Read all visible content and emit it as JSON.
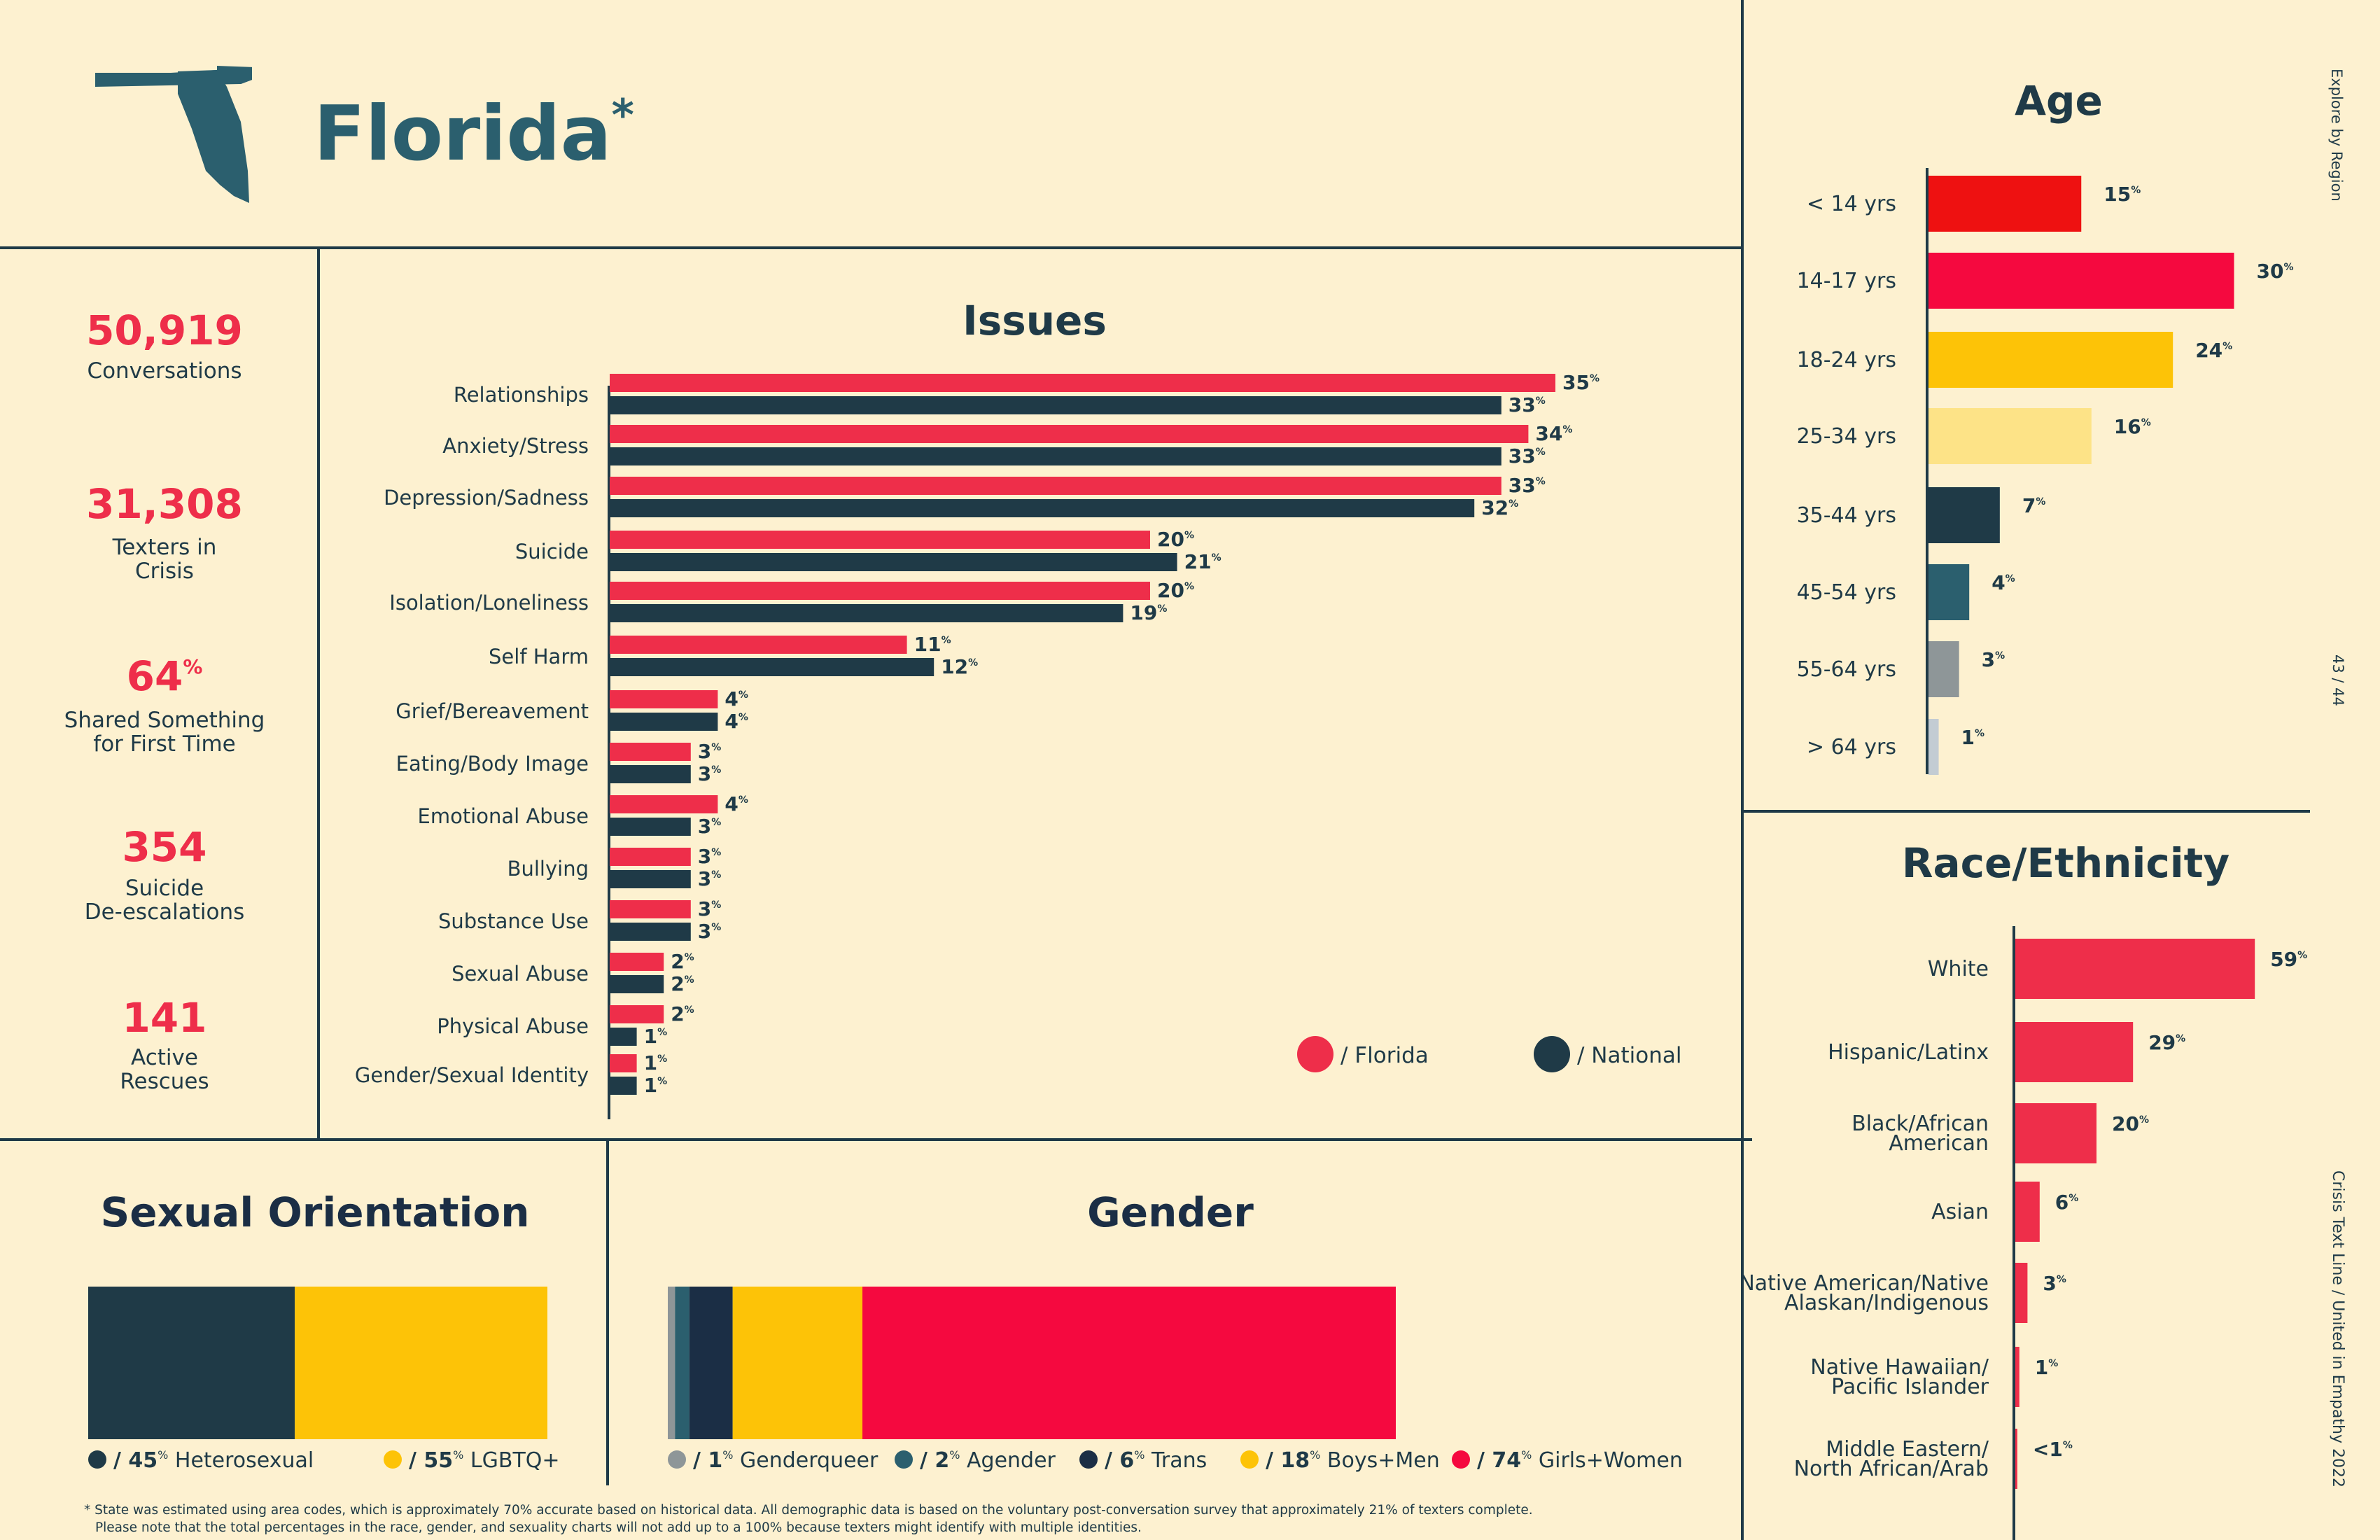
{
  "header": {
    "state": "Florida",
    "asterisk": "*"
  },
  "stats": [
    {
      "value": "50,919",
      "label": [
        "Conversations"
      ]
    },
    {
      "value": "31,308",
      "label": [
        "Texters in",
        "Crisis"
      ]
    },
    {
      "value": "64",
      "unit": "%",
      "label": [
        "Shared Something",
        "for First Time"
      ]
    },
    {
      "value": "354",
      "label": [
        "Suicide",
        "De-escalations"
      ]
    },
    {
      "value": "141",
      "label": [
        "Active",
        "Rescues"
      ]
    }
  ],
  "side_text": {
    "top": "Explore by Region",
    "page": "43 / 44",
    "bottom": "Crisis Text Line  /  United in Empathy 2022"
  },
  "footnote": [
    "* State was estimated using area codes, which is approximately 70% accurate based on historical data. All demographic data is based on the voluntary post-conversation survey that approximately 21% of texters complete.",
    "Please note that the total percentages in the race, gender, and sexuality charts will not add up to a 100% because texters might identify with multiple identities."
  ],
  "colors": {
    "red": "#ee2e4a",
    "dark": "#1f3a47",
    "navy": "#1b2e45",
    "teal": "#2b5f6e",
    "yellow": "#fdc307",
    "paleyellow": "#fde387",
    "gray": "#8e9698",
    "lightgray": "#c3ccd3",
    "brightred": "#ee1111",
    "hotred": "#f5093f"
  },
  "chart_data": [
    {
      "id": "issues",
      "type": "bar",
      "orientation": "horizontal",
      "title": "Issues",
      "categories": [
        "Relationships",
        "Anxiety/Stress",
        "Depression/Sadness",
        "Suicide",
        "Isolation/Loneliness",
        "Self Harm",
        "Grief/Bereavement",
        "Eating/Body Image",
        "Emotional Abuse",
        "Bullying",
        "Substance Use",
        "Sexual Abuse",
        "Physical Abuse",
        "Gender/Sexual Identity"
      ],
      "series": [
        {
          "name": "/ Florida",
          "color": "#ee2e4a",
          "values": [
            35,
            34,
            33,
            20,
            20,
            11,
            4,
            3,
            4,
            3,
            3,
            2,
            2,
            1
          ]
        },
        {
          "name": "/ National",
          "color": "#1f3a47",
          "values": [
            33,
            33,
            32,
            21,
            19,
            12,
            4,
            3,
            3,
            3,
            3,
            2,
            1,
            1
          ]
        }
      ],
      "unit": "%",
      "legend": "bottom-right"
    },
    {
      "id": "age",
      "type": "bar",
      "orientation": "horizontal",
      "title": "Age",
      "categories": [
        "< 14 yrs",
        "14-17 yrs",
        "18-24 yrs",
        "25-34 yrs",
        "35-44 yrs",
        "45-54 yrs",
        "55-64 yrs",
        "> 64 yrs"
      ],
      "values": [
        15,
        30,
        24,
        16,
        7,
        4,
        3,
        1
      ],
      "labels": [
        "15",
        "30",
        "24",
        "16",
        "7",
        "4",
        "3",
        "1"
      ],
      "colors": [
        "#ee1111",
        "#f5093f",
        "#fdc307",
        "#fde387",
        "#1f3a47",
        "#2b5f6e",
        "#8e9698",
        "#c3ccd3"
      ],
      "unit": "%"
    },
    {
      "id": "race",
      "type": "bar",
      "orientation": "horizontal",
      "title": "Race/Ethnicity",
      "categories": [
        [
          "White"
        ],
        [
          "Hispanic/Latinx"
        ],
        [
          "Black/African",
          "American"
        ],
        [
          "Asian"
        ],
        [
          "Native American/Native",
          "Alaskan/Indigenous"
        ],
        [
          "Native Hawaiian/",
          "Pacific Islander"
        ],
        [
          "Middle Eastern/",
          "North African/Arab"
        ]
      ],
      "values": [
        59,
        29,
        20,
        6,
        3,
        1,
        0.5
      ],
      "labels": [
        "59",
        "29",
        "20",
        "6",
        "3",
        "1",
        "<1"
      ],
      "color": "#ee2e4a",
      "unit": "%"
    },
    {
      "id": "sexual_orientation",
      "type": "bar",
      "stacked": true,
      "title": "Sexual Orientation",
      "segments": [
        {
          "name": "Heterosexual",
          "value": 45,
          "color": "#1f3a47"
        },
        {
          "name": "LGBTQ+",
          "value": 55,
          "color": "#fdc307"
        }
      ],
      "unit": "%"
    },
    {
      "id": "gender",
      "type": "bar",
      "stacked": true,
      "title": "Gender",
      "segments": [
        {
          "name": "Genderqueer",
          "value": 1,
          "color": "#8e9698"
        },
        {
          "name": "Agender",
          "value": 2,
          "color": "#2b5f6e"
        },
        {
          "name": "Trans",
          "value": 6,
          "color": "#1b2e45"
        },
        {
          "name": "Boys+Men",
          "value": 18,
          "color": "#fdc307"
        },
        {
          "name": "Girls+Women",
          "value": 74,
          "color": "#f5093f"
        }
      ],
      "unit": "%"
    }
  ]
}
